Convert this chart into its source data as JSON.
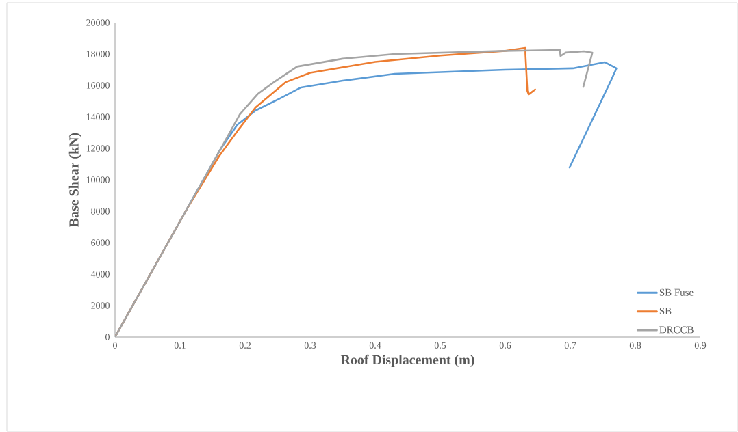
{
  "chart_data": {
    "type": "line",
    "xlabel": "Roof Displacement (m)",
    "ylabel": "Base Shear (kN)",
    "xlim": [
      0,
      0.9
    ],
    "ylim": [
      0,
      20000
    ],
    "xticks": [
      0,
      0.1,
      0.2,
      0.3,
      0.4,
      0.5,
      0.6,
      0.7,
      0.8,
      0.9
    ],
    "yticks": [
      0,
      2000,
      4000,
      6000,
      8000,
      10000,
      12000,
      14000,
      16000,
      18000,
      20000
    ],
    "legend": "bottom right",
    "series": [
      {
        "name": "SB Fuse",
        "color": "#5b9bd5",
        "x": [
          0,
          0.11,
          0.163,
          0.188,
          0.216,
          0.255,
          0.286,
          0.35,
          0.43,
          0.6,
          0.704,
          0.753,
          0.771,
          0.763,
          0.699
        ],
        "values": [
          0,
          8100,
          12000,
          13500,
          14400,
          15200,
          15870,
          16300,
          16740,
          17000,
          17090,
          17480,
          17090,
          16350,
          10780
        ]
      },
      {
        "name": "SB",
        "color": "#ed7d31",
        "x": [
          0,
          0.11,
          0.16,
          0.188,
          0.216,
          0.262,
          0.3,
          0.4,
          0.5,
          0.6,
          0.631,
          0.631,
          0.634,
          0.636,
          0.646
        ],
        "values": [
          0,
          8100,
          11500,
          13090,
          14600,
          16200,
          16800,
          17500,
          17900,
          18200,
          18390,
          18040,
          15650,
          15430,
          15740
        ]
      },
      {
        "name": "DRCCB",
        "color": "#a5a5a5",
        "x": [
          0,
          0.11,
          0.163,
          0.192,
          0.22,
          0.244,
          0.28,
          0.35,
          0.43,
          0.6,
          0.684,
          0.685,
          0.693,
          0.721,
          0.734,
          0.72
        ],
        "values": [
          0,
          8100,
          12000,
          14170,
          15480,
          16200,
          17200,
          17700,
          18000,
          18200,
          18260,
          17870,
          18090,
          18170,
          18090,
          15910
        ]
      }
    ]
  }
}
